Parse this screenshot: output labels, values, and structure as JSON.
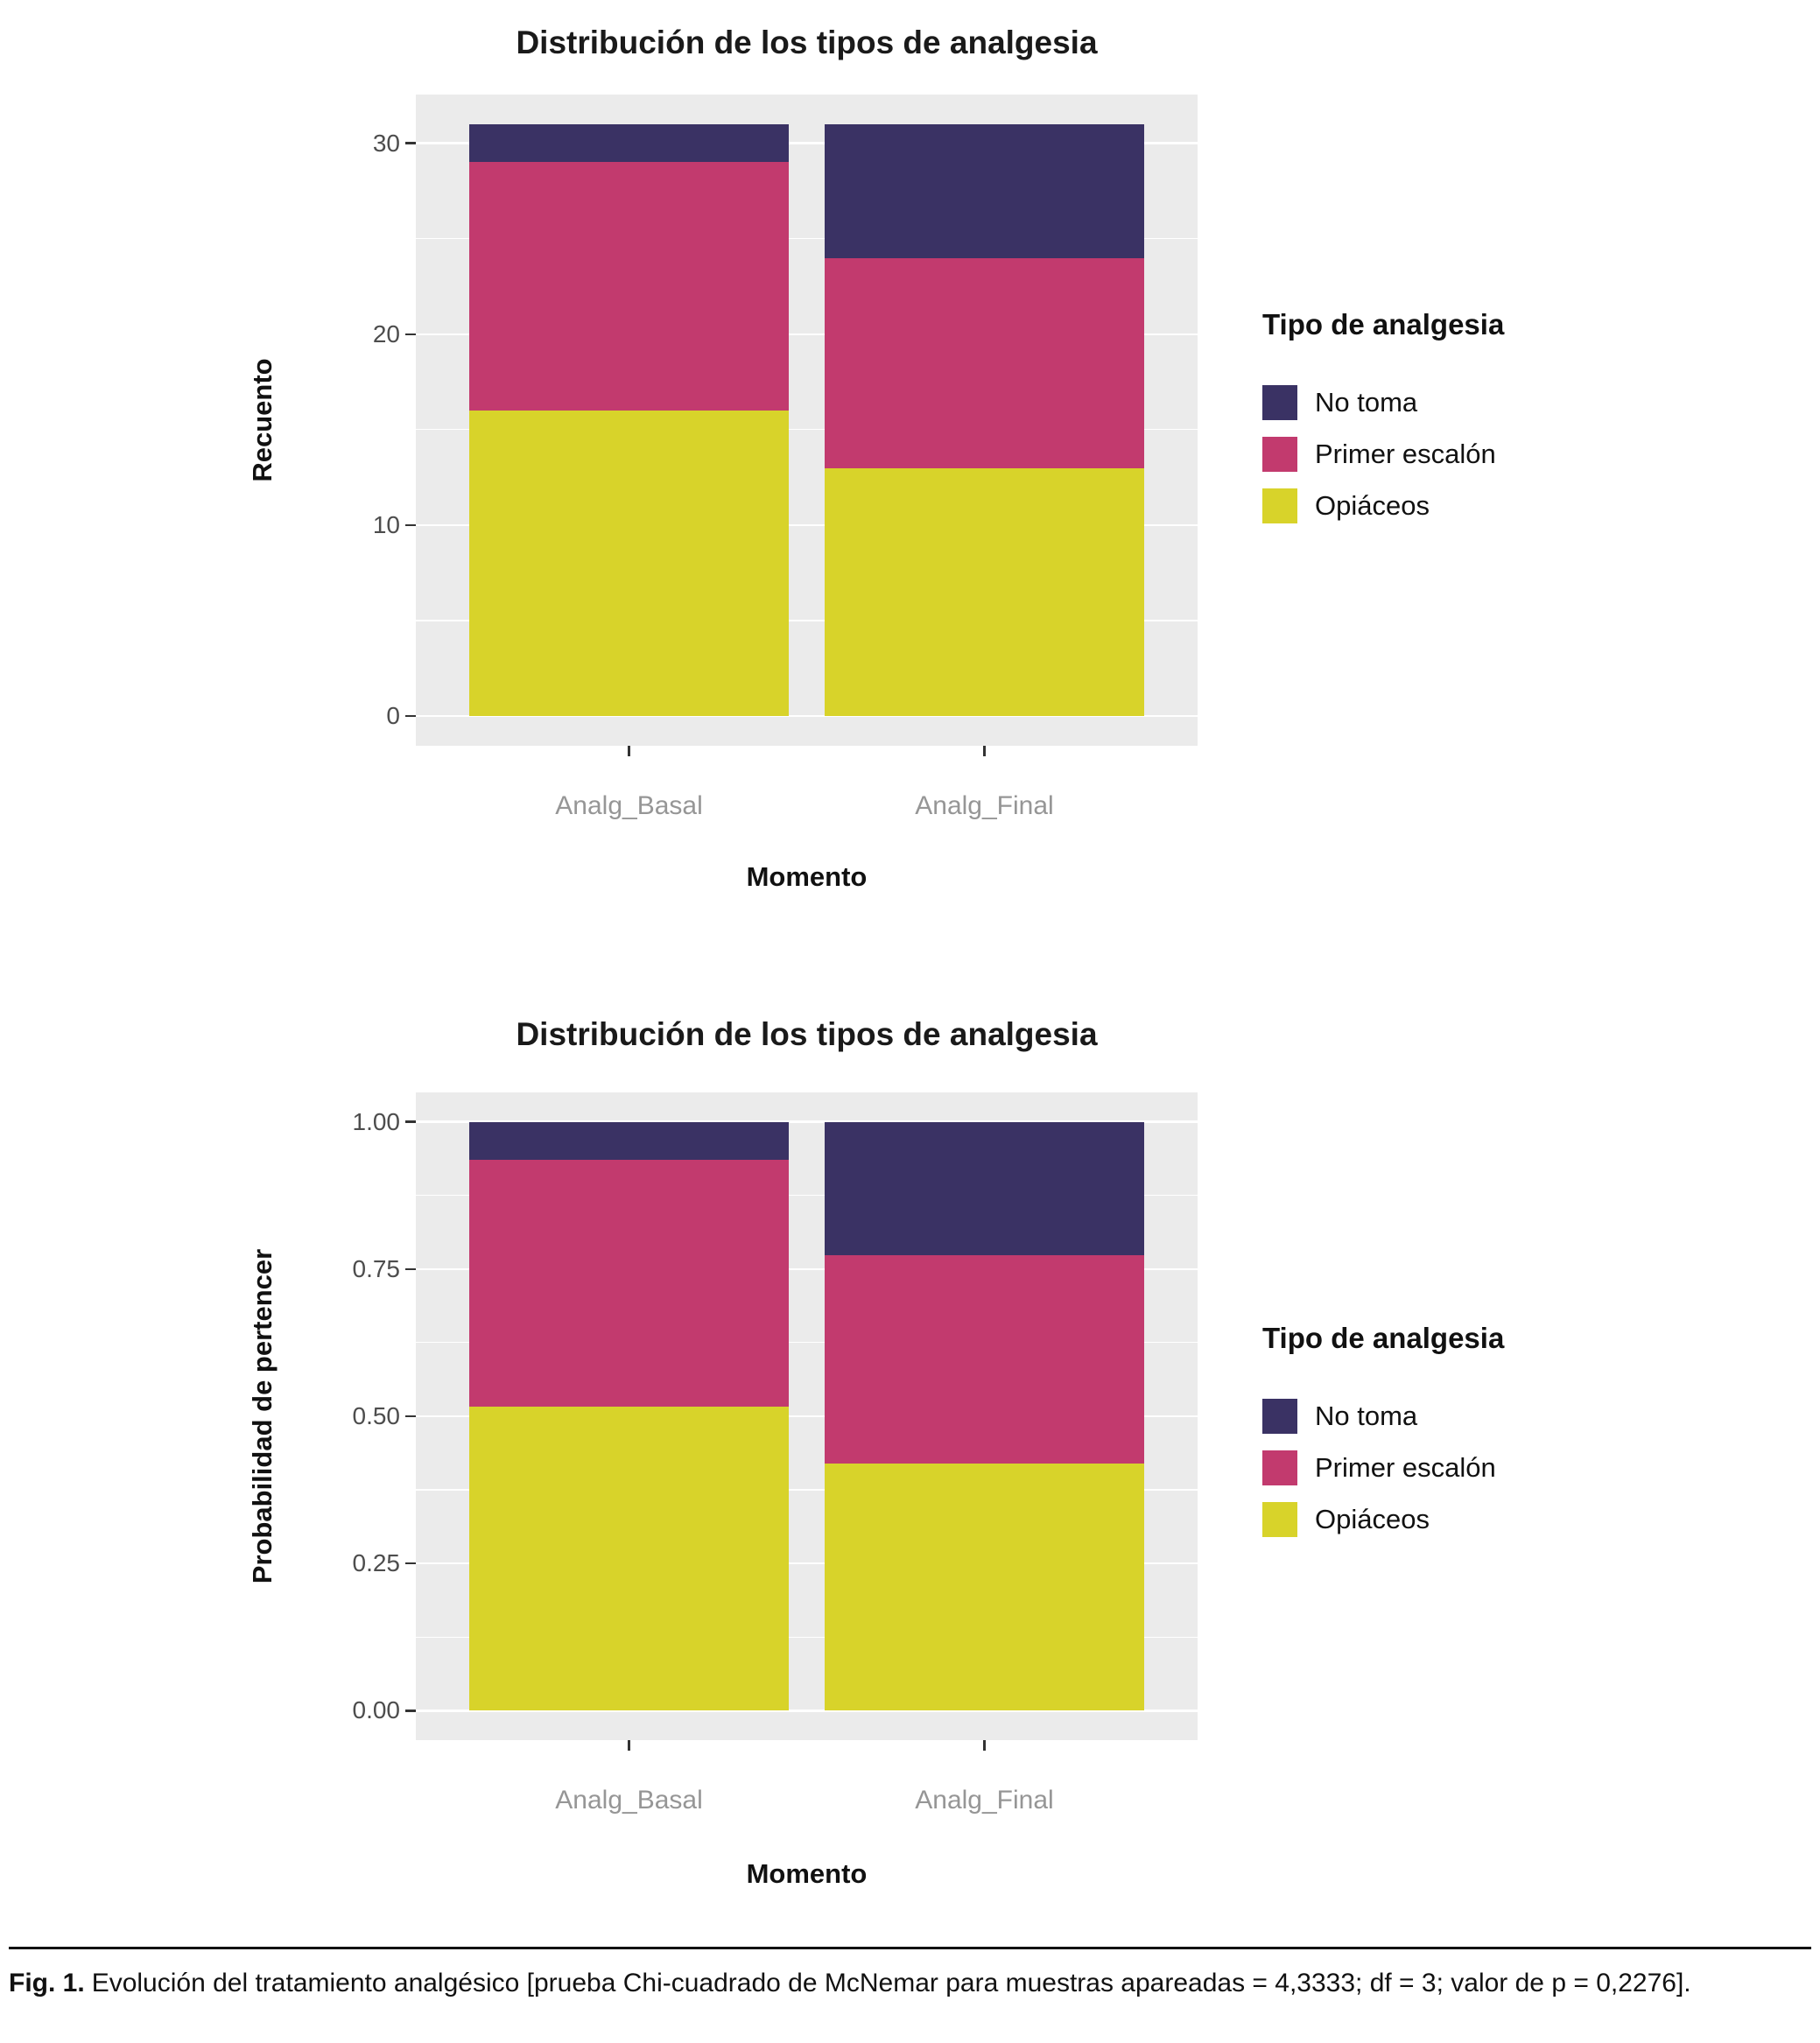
{
  "figure": {
    "colors": {
      "no_toma": "#3a3264",
      "primer_escalon": "#c23a6e",
      "opiaceos": "#d8d32a",
      "panel_bg": "#ebebeb",
      "gridline": "#ffffff"
    }
  },
  "caption": {
    "prefix": "Fig. 1.",
    "body": "Evolución del tratamiento analgésico [prueba Chi-cuadrado de McNemar para muestras apareadas = 4,3333; df = 3; valor de p = 0,2276]."
  },
  "chart_data": [
    {
      "type": "bar",
      "stacked": true,
      "title": "Distribución de los tipos de analgesia",
      "xlabel": "Momento",
      "ylabel": "Recuento",
      "legend_title": "Tipo de analgesia",
      "legend_position": "right",
      "grid": true,
      "categories": [
        "Analg_Basal",
        "Analg_Final"
      ],
      "series": [
        {
          "name": "No toma",
          "color_key": "no_toma",
          "values": [
            2,
            7
          ]
        },
        {
          "name": "Primer escalón",
          "color_key": "primer_escalon",
          "values": [
            13,
            11
          ]
        },
        {
          "name": "Opiáceos",
          "color_key": "opiaceos",
          "values": [
            16,
            13
          ]
        }
      ],
      "totals": [
        31,
        31
      ],
      "ylim": [
        0,
        31
      ],
      "yticks": [
        0,
        10,
        20,
        30
      ],
      "ytick_labels": [
        "0",
        "10",
        "20",
        "30"
      ],
      "yticks_minor": [
        5,
        15,
        25
      ]
    },
    {
      "type": "bar",
      "stacked": true,
      "title": "Distribución de los tipos de analgesia",
      "xlabel": "Momento",
      "ylabel": "Probabilidad de pertencer",
      "legend_title": "Tipo de analgesia",
      "legend_position": "right",
      "grid": true,
      "categories": [
        "Analg_Basal",
        "Analg_Final"
      ],
      "series": [
        {
          "name": "No toma",
          "color_key": "no_toma",
          "values": [
            0.0645,
            0.2258
          ]
        },
        {
          "name": "Primer escalón",
          "color_key": "primer_escalon",
          "values": [
            0.4194,
            0.3548
          ]
        },
        {
          "name": "Opiáceos",
          "color_key": "opiaceos",
          "values": [
            0.5161,
            0.4194
          ]
        }
      ],
      "totals": [
        1.0,
        1.0
      ],
      "ylim": [
        0,
        1
      ],
      "yticks": [
        0,
        0.25,
        0.5,
        0.75,
        1
      ],
      "ytick_labels": [
        "0.00",
        "0.25",
        "0.50",
        "0.75",
        "1.00"
      ],
      "yticks_minor": [
        0.125,
        0.375,
        0.625,
        0.875
      ]
    }
  ]
}
